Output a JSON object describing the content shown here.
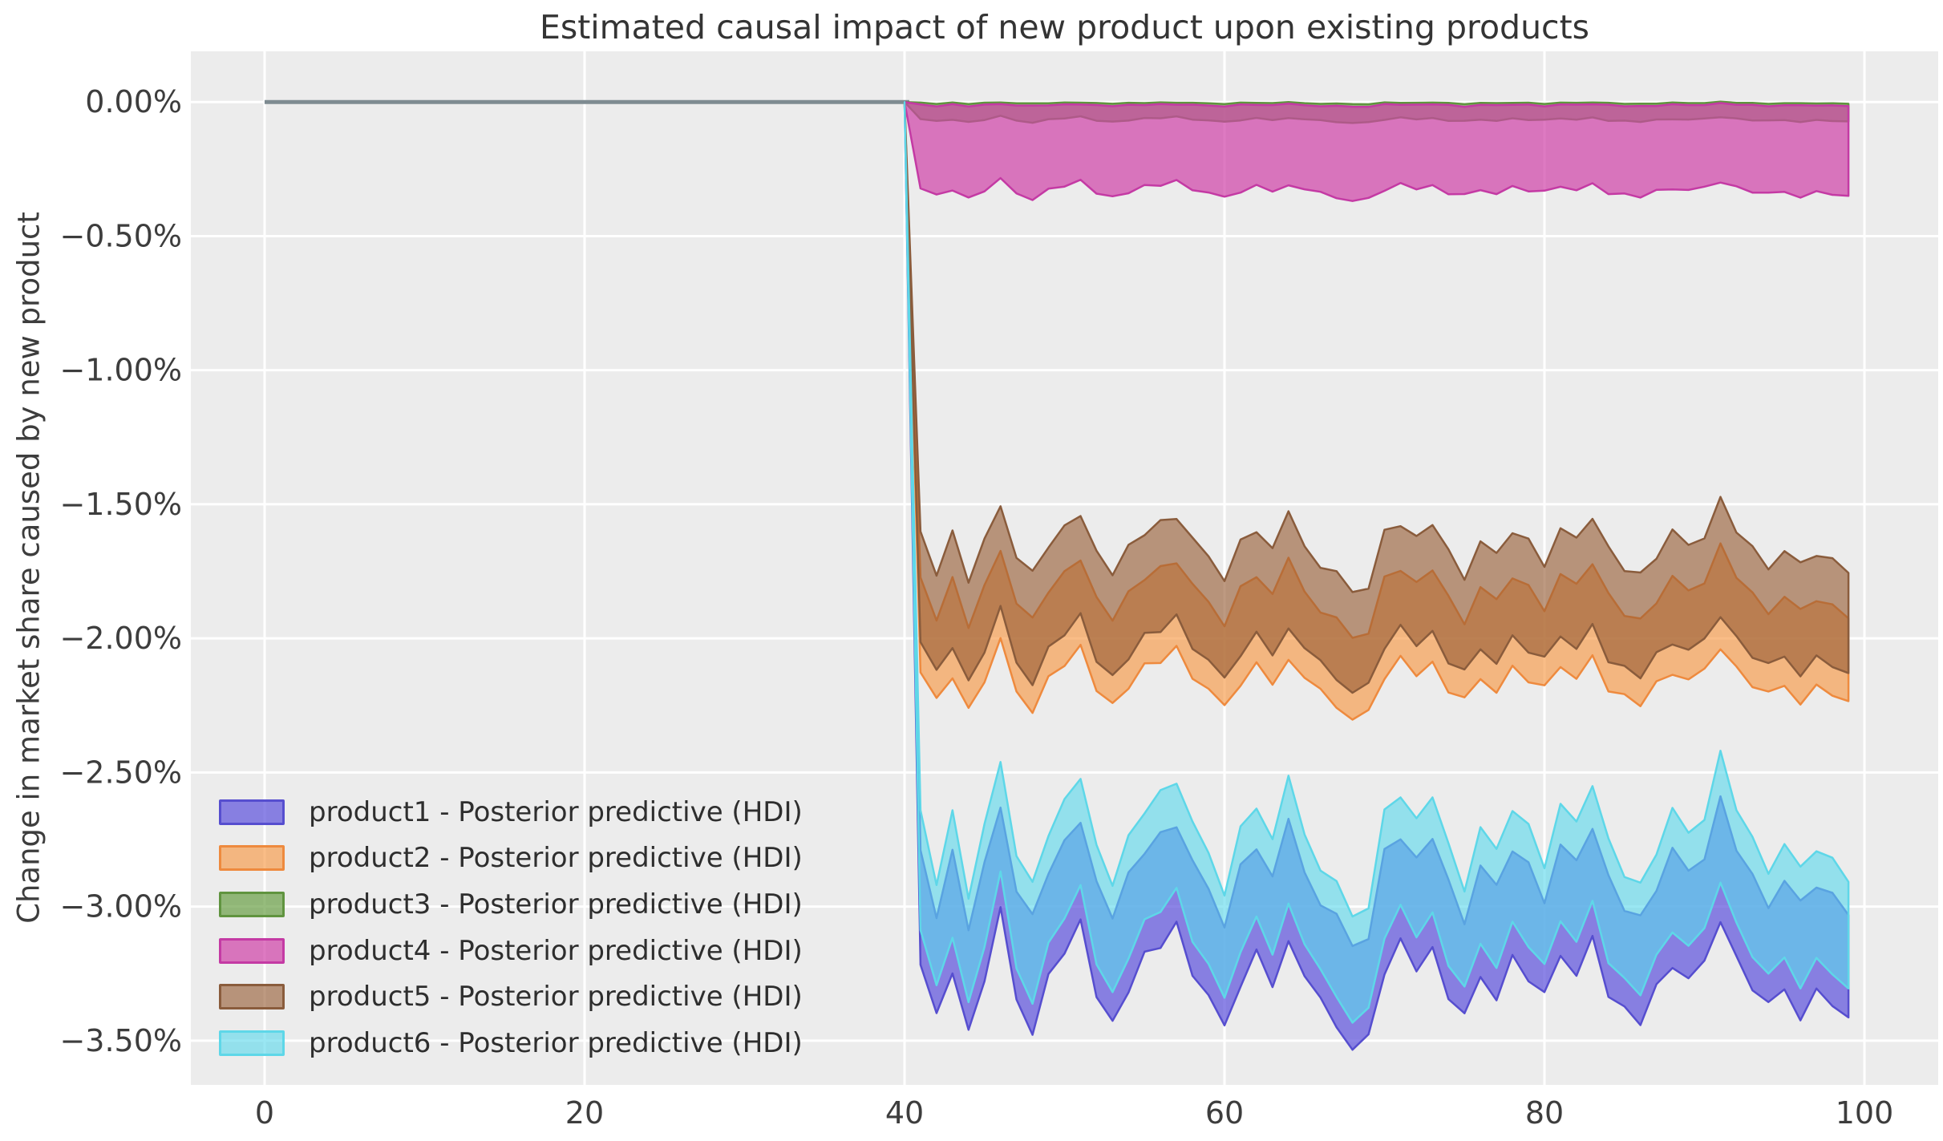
{
  "chart_data": {
    "type": "area",
    "title": "Estimated causal impact of new product upon existing products",
    "xlabel": "",
    "ylabel": "Change in market share caused by new product",
    "grid": true,
    "legend_position": "lower left",
    "plot_bg": "#ececec",
    "grid_color": "#ffffff",
    "tick_color": "#3d3d3d",
    "xlim": [
      -4.61,
      104.61
    ],
    "ylim": [
      -3.665,
      0.189
    ],
    "x_ticks": [
      {
        "value": 0,
        "label": "0"
      },
      {
        "value": 20,
        "label": "20"
      },
      {
        "value": 40,
        "label": "40"
      },
      {
        "value": 60,
        "label": "60"
      },
      {
        "value": 80,
        "label": "80"
      },
      {
        "value": 100,
        "label": "100"
      }
    ],
    "y_ticks": [
      {
        "value": 0.0,
        "label": "0.00%"
      },
      {
        "value": -0.5,
        "label": "−0.50%"
      },
      {
        "value": -1.0,
        "label": "−1.00%"
      },
      {
        "value": -1.5,
        "label": "−1.50%"
      },
      {
        "value": -2.0,
        "label": "−2.00%"
      },
      {
        "value": -2.5,
        "label": "−2.50%"
      },
      {
        "value": -3.0,
        "label": "−3.00%"
      },
      {
        "value": -3.5,
        "label": "−3.50%"
      }
    ],
    "pre_period": {
      "x_start": 0,
      "x_end": 40.3,
      "value": 0,
      "color": "#7e8b91",
      "width": 5
    },
    "treatment_time": 40,
    "post_x_start": 41,
    "post_x_end": 99,
    "pattern": [
      0.3,
      -0.55,
      0.25,
      -0.75,
      0.1,
      1.0,
      -0.25,
      -0.65,
      0.05,
      0.45,
      0.8,
      -0.15,
      -0.6,
      -0.05,
      0.35,
      0.55,
      0.75,
      0.15,
      -0.2,
      -0.7,
      0.05,
      0.4,
      -0.05,
      0.7,
      0.05,
      -0.35,
      -0.6,
      -1.0,
      -0.85,
      0.25,
      0.55,
      0.2,
      0.5,
      -0.15,
      -0.6,
      0.1,
      -0.2,
      0.35,
      0.1,
      -0.3,
      0.4,
      0.15,
      0.65,
      -0.1,
      -0.45,
      -0.6,
      -0.15,
      0.3,
      0.05,
      0.25,
      1.0,
      0.35,
      -0.05,
      -0.4,
      -0.1,
      -0.45,
      -0.15,
      -0.3,
      -0.55
    ],
    "jitter": [
      0.3,
      -0.5,
      0.8,
      -0.2,
      0.6,
      -0.7,
      0.1,
      0.9,
      -0.4,
      0.2,
      -0.8,
      0.5,
      -0.1,
      0.7,
      -0.6,
      0.3,
      -0.9,
      0.4,
      0.0,
      -0.3,
      0.8,
      -0.5,
      0.2,
      0.6,
      -0.2,
      -0.7,
      0.5,
      0.1,
      -0.4,
      0.9,
      -0.6,
      0.3,
      -0.1,
      0.7,
      -0.8,
      0.2,
      0.5,
      -0.3,
      0.6,
      -0.9,
      0.1,
      0.4,
      -0.2,
      0.8,
      -0.5,
      0.3,
      -0.7,
      0.6,
      0.0,
      -0.4,
      0.7,
      -0.2,
      0.5,
      -0.6,
      0.1,
      0.8,
      -0.3,
      0.4,
      -0.1
    ],
    "series": [
      {
        "name": "product1",
        "label": "product1 - Posterior predictive (HDI)",
        "fill": "rgba(95,85,220,0.72)",
        "edge": "#564ecf",
        "hdi_top_mean": -2.88,
        "hdi_top_amp": 0.27,
        "hdi_bottom_mean": -3.28,
        "hdi_bottom_amp": 0.25,
        "jitter_top": 0.03,
        "jitter_bottom": 0.04
      },
      {
        "name": "product2",
        "label": "product2 - Posterior predictive (HDI)",
        "fill": "rgba(247,148,62,0.62)",
        "edge": "#ee8a3e",
        "hdi_top_mean": -1.83,
        "hdi_top_amp": 0.17,
        "hdi_bottom_mean": -2.16,
        "hdi_bottom_amp": 0.14,
        "jitter_top": 0.02,
        "jitter_bottom": 0.03
      },
      {
        "name": "product3",
        "label": "product3 - Posterior predictive (HDI)",
        "fill": "rgba(105,160,70,0.70)",
        "edge": "#60943f",
        "hdi_top_mean": -0.004,
        "hdi_top_amp": 0.004,
        "hdi_bottom_mean": -0.066,
        "hdi_bottom_amp": 0.012,
        "jitter_top": 0.002,
        "jitter_bottom": 0.004
      },
      {
        "name": "product4",
        "label": "product4 - Posterior predictive (HDI)",
        "fill": "rgba(208,66,168,0.70)",
        "edge": "#c43aa4",
        "hdi_top_mean": -0.012,
        "hdi_top_amp": 0.006,
        "hdi_bottom_mean": -0.33,
        "hdi_bottom_amp": 0.038,
        "jitter_top": 0.003,
        "jitter_bottom": 0.012
      },
      {
        "name": "product5",
        "label": "product5 - Posterior predictive (HDI)",
        "fill": "rgba(150,92,52,0.62)",
        "edge": "#8a5c3c",
        "hdi_top_mean": -1.66,
        "hdi_top_amp": 0.17,
        "hdi_bottom_mean": -2.05,
        "hdi_bottom_amp": 0.15,
        "jitter_top": 0.025,
        "jitter_bottom": 0.03
      },
      {
        "name": "product6",
        "label": "product6 - Posterior predictive (HDI)",
        "fill": "rgba(92,216,235,0.62)",
        "edge": "#5ed7e8",
        "hdi_top_mean": -2.74,
        "hdi_top_amp": 0.3,
        "hdi_bottom_mean": -3.16,
        "hdi_bottom_amp": 0.27,
        "jitter_top": 0.03,
        "jitter_bottom": 0.03
      }
    ]
  }
}
